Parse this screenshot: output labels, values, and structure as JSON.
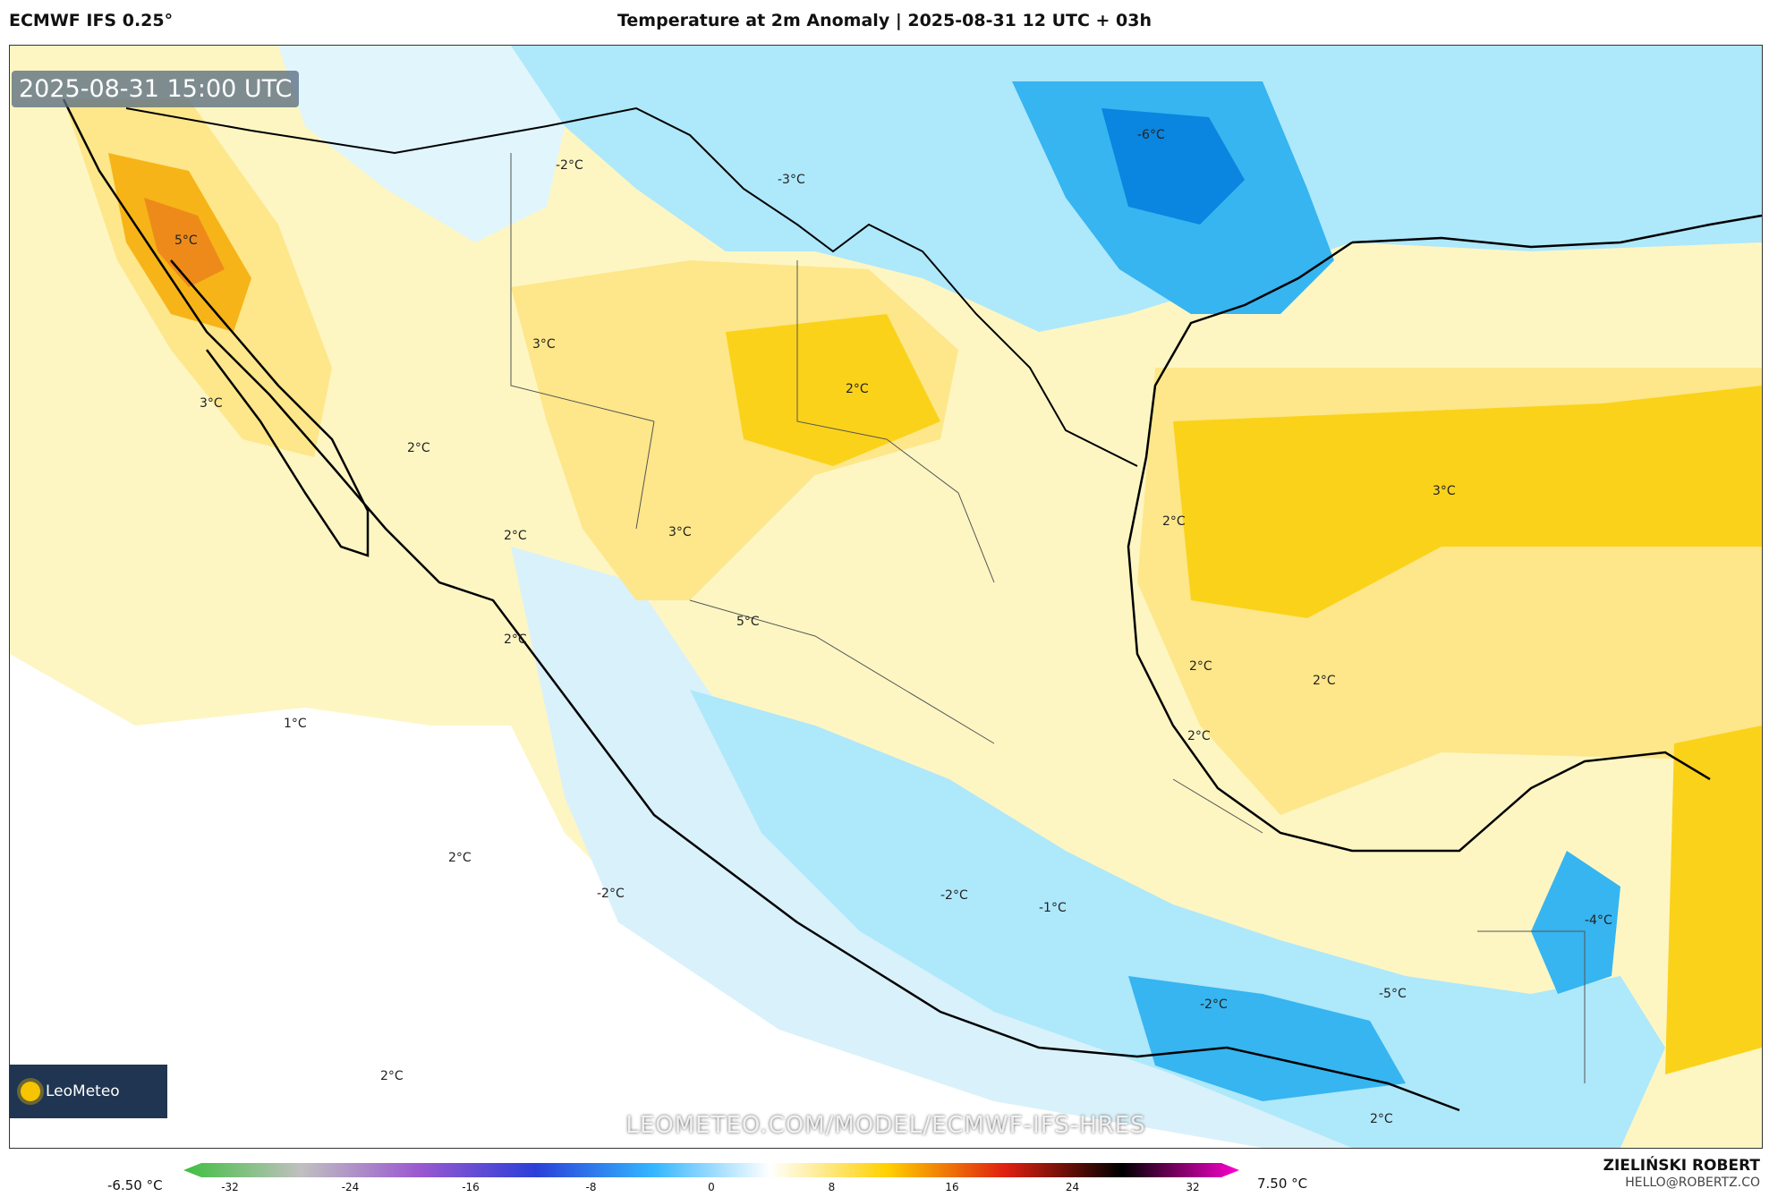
{
  "header": {
    "model": "ECMWF IFS 0.25°",
    "title": "Temperature at 2m Anomaly | 2025-08-31 12 UTC + 03h"
  },
  "map": {
    "valid_time": "2025-08-31 15:00 UTC",
    "watermark": "LEOMETEO.COM/MODEL/ECMWF-IFS-HRES",
    "logo_text": "LeoMeteo",
    "labels": [
      {
        "text": "-6°C"
      },
      {
        "text": "-2°C"
      },
      {
        "text": "-3°C"
      },
      {
        "text": "5°C"
      },
      {
        "text": "3°C"
      },
      {
        "text": "3°C"
      },
      {
        "text": "2°C"
      },
      {
        "text": "2°C"
      },
      {
        "text": "2°C"
      },
      {
        "text": "3°C"
      },
      {
        "text": "5°C"
      },
      {
        "text": "2°C"
      },
      {
        "text": "1°C"
      },
      {
        "text": "2°C"
      },
      {
        "text": "-2°C"
      },
      {
        "text": "-2°C"
      },
      {
        "text": "-1°C"
      },
      {
        "text": "2°C"
      },
      {
        "text": "3°C"
      },
      {
        "text": "2°C"
      },
      {
        "text": "2°C"
      },
      {
        "text": "2°C"
      },
      {
        "text": "-2°C"
      },
      {
        "text": "-5°C"
      },
      {
        "text": "-4°C"
      },
      {
        "text": "2°C"
      },
      {
        "text": "2°C"
      }
    ]
  },
  "colorbar": {
    "min_label": "-6.50 °C",
    "max_label": "7.50 °C",
    "ticks": [
      "-32",
      "-24",
      "-16",
      "-8",
      "0",
      "8",
      "16",
      "24",
      "32"
    ],
    "colors": [
      "#3fbf3f",
      "#c0c0c0",
      "#9b59d0",
      "#2b3fd8",
      "#33b6ff",
      "#ffffff",
      "#ffd000",
      "#e02010",
      "#000000",
      "#ff00d0"
    ]
  },
  "credits": {
    "author": "ZIELIŃSKI ROBERT",
    "email": "HELLO@ROBERTZ.CO"
  }
}
